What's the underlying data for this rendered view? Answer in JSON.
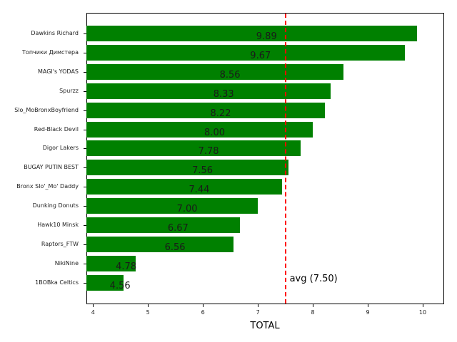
{
  "chart_data": {
    "type": "bar",
    "orientation": "horizontal",
    "title": "",
    "xlabel": "TOTAL",
    "ylabel": "",
    "xlim": [
      3.88,
      10.39
    ],
    "xticks": [
      4,
      5,
      6,
      7,
      8,
      9,
      10
    ],
    "grid": false,
    "bar_color": "#008000",
    "categories": [
      "Dawkins Richard",
      "Топчики Димстера",
      "MAGI's YODAS",
      "Spurzz",
      "Slo_MoBronxBoyfriend",
      "Red-Black Devil",
      "Digor Lakers",
      "BUGAY PUTIN BEST",
      "Bronx Slo'_Mo' Daddy",
      "Dunking Donuts",
      "Hawk10 Minsk",
      "Raptors_FTW",
      "NikiNine",
      "1BOBka Celtics"
    ],
    "values": [
      9.89,
      9.67,
      8.56,
      8.33,
      8.22,
      8.0,
      7.78,
      7.56,
      7.44,
      7.0,
      6.67,
      6.56,
      4.78,
      4.56
    ],
    "value_labels": [
      "9.89",
      "9.67",
      "8.56",
      "8.33",
      "8.22",
      "8.00",
      "7.78",
      "7.56",
      "7.44",
      "7.00",
      "6.67",
      "6.56",
      "4.78",
      "4.56"
    ],
    "reference_line": {
      "value": 7.5,
      "label": "avg (7.50)",
      "color": "#ff0000",
      "style": "dashed"
    }
  }
}
